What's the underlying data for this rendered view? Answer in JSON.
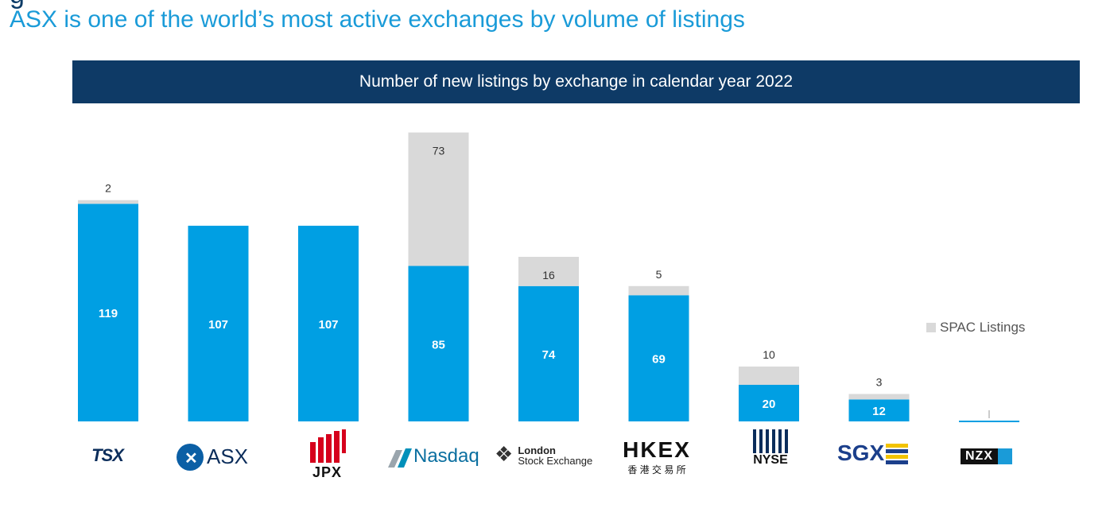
{
  "header": {
    "subtitle": "ASX is one of the world’s most active exchanges by volume of listings"
  },
  "colors": {
    "new_listings": "#009fe3",
    "spac": "#d9d9d9",
    "banner": "#0e3a66"
  },
  "chart_data": {
    "type": "bar",
    "stacked": true,
    "title": "Number of new listings by exchange in calendar year 2022",
    "categories": [
      "TSX",
      "ASX",
      "JPX",
      "Nasdaq",
      "London Stock Exchange",
      "HKEX",
      "NYSE",
      "SGX",
      "NZX"
    ],
    "series": [
      {
        "values": [
          119,
          107,
          107,
          85,
          74,
          69,
          20,
          12,
          0
        ]
      },
      {
        "name": "SPAC Listings",
        "values": [
          2,
          0,
          0,
          73,
          16,
          5,
          10,
          3,
          0
        ]
      }
    ],
    "legend": "right"
  },
  "logos": {
    "tsx": "TSX",
    "asx": "ASX",
    "jpx": "JPX",
    "nasdaq": "Nasdaq",
    "lse_line1": "London",
    "lse_line2": "Stock Exchange",
    "hkex": "HKEX",
    "hkex_cn": "香 港 交 易 所",
    "nyse": "NYSE",
    "sgx": "SGX",
    "nzx": "NZX"
  }
}
